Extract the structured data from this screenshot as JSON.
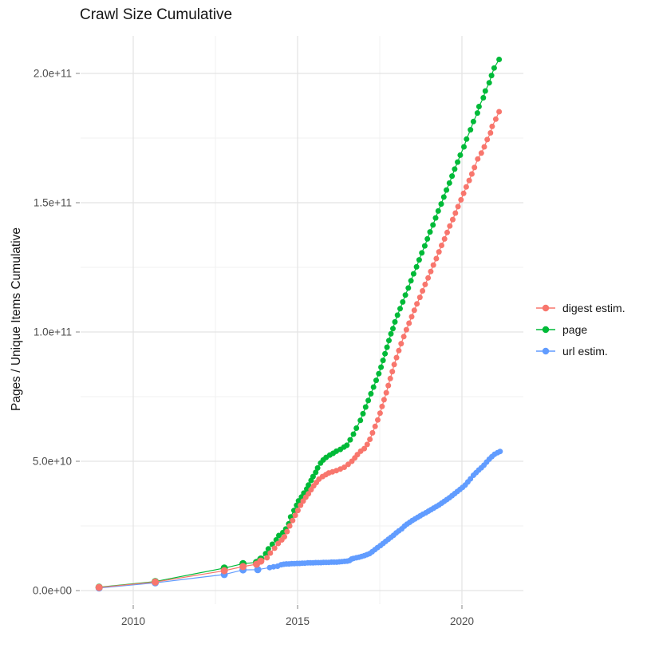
{
  "title": "Crawl Size Cumulative",
  "y_axis": {
    "label": "Pages / Unique Items Cumulative",
    "ticks": [
      {
        "label": "0.0e+00",
        "value_e9": 0
      },
      {
        "label": "5.0e+10",
        "value_e9": 50
      },
      {
        "label": "1.0e+11",
        "value_e9": 100
      },
      {
        "label": "1.5e+11",
        "value_e9": 150
      },
      {
        "label": "2.0e+11",
        "value_e9": 200
      }
    ],
    "minor_e9": [
      25,
      75,
      125,
      175
    ]
  },
  "x_axis": {
    "ticks": [
      {
        "label": "2010",
        "value": 2010
      },
      {
        "label": "2015",
        "value": 2015
      },
      {
        "label": "2020",
        "value": 2020
      }
    ],
    "minor": [
      2012.5,
      2017.5
    ]
  },
  "legend": {
    "items": [
      {
        "name": "digest estim.",
        "color": "#F8766D"
      },
      {
        "name": "page",
        "color": "#00BA38"
      },
      {
        "name": "url estim.",
        "color": "#619CFF"
      }
    ]
  },
  "colors": {
    "background": "#FFFFFF",
    "grid_major": "#E4E4E4",
    "grid_minor": "#F0F0F0",
    "tick": "#999999",
    "tick_label": "#4D4D4D",
    "text": "#151515",
    "digest": "#F8766D",
    "page": "#00BA38",
    "url": "#619CFF"
  },
  "chart_data": {
    "type": "scatter",
    "title": "Crawl Size Cumulative",
    "xlabel": "",
    "ylabel": "Pages / Unique Items Cumulative",
    "x_unit": "year (decimal)",
    "value_unit": "pages, value x 1e9",
    "xlim": [
      2008.4,
      2021.9
    ],
    "ylim_e9": [
      -5,
      215
    ],
    "grid": true,
    "legend_position": "right",
    "series": [
      {
        "name": "digest estim.",
        "color": "#F8766D",
        "points": [
          [
            2008.96,
            1.2
          ],
          [
            2010.67,
            3.3
          ],
          [
            2012.77,
            7.7
          ],
          [
            2013.34,
            9.3
          ],
          [
            2013.75,
            10.2
          ],
          [
            2013.88,
            11.4
          ],
          [
            2014.07,
            12.7
          ],
          [
            2014.17,
            14.5
          ],
          [
            2014.3,
            16.4
          ],
          [
            2014.41,
            18.2
          ],
          [
            2014.52,
            19.6
          ],
          [
            2014.6,
            20.8
          ],
          [
            2014.68,
            22.8
          ],
          [
            2014.76,
            25.0
          ],
          [
            2014.85,
            27.1
          ],
          [
            2014.93,
            29.1
          ],
          [
            2015.01,
            31.0
          ],
          [
            2015.09,
            33.0
          ],
          [
            2015.17,
            34.6
          ],
          [
            2015.25,
            36.1
          ],
          [
            2015.33,
            37.4
          ],
          [
            2015.41,
            39.0
          ],
          [
            2015.49,
            40.5
          ],
          [
            2015.57,
            41.8
          ],
          [
            2015.65,
            43.1
          ],
          [
            2015.76,
            44.1
          ],
          [
            2015.86,
            44.8
          ],
          [
            2015.95,
            45.5
          ],
          [
            2016.06,
            45.9
          ],
          [
            2016.18,
            46.4
          ],
          [
            2016.3,
            47.0
          ],
          [
            2016.42,
            47.7
          ],
          [
            2016.54,
            48.8
          ],
          [
            2016.65,
            50.0
          ],
          [
            2016.74,
            51.3
          ],
          [
            2016.82,
            52.6
          ],
          [
            2016.92,
            53.9
          ],
          [
            2017.03,
            54.9
          ],
          [
            2017.12,
            56.5
          ],
          [
            2017.2,
            58.5
          ],
          [
            2017.28,
            61.0
          ],
          [
            2017.36,
            63.5
          ],
          [
            2017.44,
            66.0
          ],
          [
            2017.51,
            68.6
          ],
          [
            2017.57,
            71.2
          ],
          [
            2017.63,
            73.8
          ],
          [
            2017.7,
            76.5
          ],
          [
            2017.76,
            79.3
          ],
          [
            2017.82,
            82.0
          ],
          [
            2017.88,
            84.7
          ],
          [
            2017.94,
            87.4
          ],
          [
            2018.01,
            90.1
          ],
          [
            2018.08,
            92.8
          ],
          [
            2018.15,
            95.5
          ],
          [
            2018.23,
            98.2
          ],
          [
            2018.31,
            100.9
          ],
          [
            2018.39,
            103.4
          ],
          [
            2018.47,
            105.9
          ],
          [
            2018.55,
            108.4
          ],
          [
            2018.63,
            110.9
          ],
          [
            2018.72,
            113.4
          ],
          [
            2018.8,
            115.9
          ],
          [
            2018.88,
            118.4
          ],
          [
            2018.97,
            120.9
          ],
          [
            2019.05,
            123.4
          ],
          [
            2019.13,
            125.9
          ],
          [
            2019.22,
            128.4
          ],
          [
            2019.3,
            131.0
          ],
          [
            2019.38,
            133.5
          ],
          [
            2019.47,
            136.0
          ],
          [
            2019.55,
            138.5
          ],
          [
            2019.63,
            141.0
          ],
          [
            2019.72,
            143.5
          ],
          [
            2019.8,
            146.0
          ],
          [
            2019.88,
            148.5
          ],
          [
            2019.97,
            151.1
          ],
          [
            2020.05,
            153.6
          ],
          [
            2020.13,
            156.1
          ],
          [
            2020.22,
            158.6
          ],
          [
            2020.3,
            161.1
          ],
          [
            2020.38,
            163.6
          ],
          [
            2020.48,
            166.9
          ],
          [
            2020.59,
            169.2
          ],
          [
            2020.68,
            171.6
          ],
          [
            2020.77,
            174.4
          ],
          [
            2020.87,
            177.0
          ],
          [
            2020.92,
            179.5
          ],
          [
            2021.03,
            182.3
          ],
          [
            2021.13,
            185.2
          ]
        ]
      },
      {
        "name": "page",
        "color": "#00BA38",
        "points": [
          [
            2008.96,
            1.3
          ],
          [
            2010.67,
            3.5
          ],
          [
            2012.77,
            8.7
          ],
          [
            2013.34,
            10.4
          ],
          [
            2013.75,
            10.9
          ],
          [
            2013.88,
            12.2
          ],
          [
            2014.03,
            14.3
          ],
          [
            2014.11,
            16.1
          ],
          [
            2014.23,
            17.9
          ],
          [
            2014.35,
            19.6
          ],
          [
            2014.43,
            21.3
          ],
          [
            2014.55,
            22.4
          ],
          [
            2014.64,
            23.8
          ],
          [
            2014.73,
            25.8
          ],
          [
            2014.79,
            28.5
          ],
          [
            2014.89,
            31.0
          ],
          [
            2014.97,
            33.0
          ],
          [
            2015.03,
            34.7
          ],
          [
            2015.12,
            36.2
          ],
          [
            2015.19,
            37.7
          ],
          [
            2015.28,
            39.3
          ],
          [
            2015.33,
            40.8
          ],
          [
            2015.41,
            42.6
          ],
          [
            2015.47,
            44.1
          ],
          [
            2015.55,
            45.7
          ],
          [
            2015.61,
            47.4
          ],
          [
            2015.7,
            49.3
          ],
          [
            2015.78,
            50.5
          ],
          [
            2015.87,
            51.5
          ],
          [
            2015.98,
            52.4
          ],
          [
            2016.08,
            53.1
          ],
          [
            2016.18,
            53.9
          ],
          [
            2016.3,
            54.6
          ],
          [
            2016.41,
            55.5
          ],
          [
            2016.5,
            56.2
          ],
          [
            2016.6,
            58.3
          ],
          [
            2016.7,
            60.5
          ],
          [
            2016.79,
            62.8
          ],
          [
            2016.91,
            65.8
          ],
          [
            2016.99,
            68.4
          ],
          [
            2017.07,
            71.0
          ],
          [
            2017.15,
            73.5
          ],
          [
            2017.23,
            76.1
          ],
          [
            2017.31,
            78.7
          ],
          [
            2017.39,
            81.3
          ],
          [
            2017.47,
            83.9
          ],
          [
            2017.54,
            86.4
          ],
          [
            2017.6,
            89.0
          ],
          [
            2017.66,
            91.6
          ],
          [
            2017.72,
            94.1
          ],
          [
            2017.78,
            96.7
          ],
          [
            2017.84,
            99.3
          ],
          [
            2017.9,
            101.3
          ],
          [
            2017.96,
            103.9
          ],
          [
            2018.04,
            106.5
          ],
          [
            2018.12,
            109.0
          ],
          [
            2018.2,
            111.6
          ],
          [
            2018.28,
            114.3
          ],
          [
            2018.37,
            117.0
          ],
          [
            2018.45,
            119.8
          ],
          [
            2018.53,
            122.5
          ],
          [
            2018.62,
            125.2
          ],
          [
            2018.7,
            127.9
          ],
          [
            2018.78,
            130.6
          ],
          [
            2018.87,
            133.3
          ],
          [
            2018.95,
            136.0
          ],
          [
            2019.03,
            138.7
          ],
          [
            2019.12,
            141.4
          ],
          [
            2019.2,
            144.1
          ],
          [
            2019.28,
            146.8
          ],
          [
            2019.37,
            149.5
          ],
          [
            2019.45,
            152.2
          ],
          [
            2019.53,
            154.9
          ],
          [
            2019.62,
            157.6
          ],
          [
            2019.7,
            160.3
          ],
          [
            2019.78,
            163.0
          ],
          [
            2019.87,
            165.7
          ],
          [
            2019.95,
            168.4
          ],
          [
            2020.06,
            171.6
          ],
          [
            2020.14,
            174.6
          ],
          [
            2020.26,
            178.2
          ],
          [
            2020.35,
            181.4
          ],
          [
            2020.47,
            184.7
          ],
          [
            2020.52,
            187.2
          ],
          [
            2020.65,
            190.6
          ],
          [
            2020.71,
            193.2
          ],
          [
            2020.83,
            196.4
          ],
          [
            2020.9,
            199.2
          ],
          [
            2020.98,
            202.1
          ],
          [
            2021.13,
            205.4
          ]
        ]
      },
      {
        "name": "url estim.",
        "color": "#619CFF",
        "points": [
          [
            2008.96,
            1.0
          ],
          [
            2010.67,
            3.0
          ],
          [
            2012.77,
            6.2
          ],
          [
            2013.34,
            8.0
          ],
          [
            2013.79,
            8.1
          ],
          [
            2014.15,
            8.9
          ],
          [
            2014.27,
            9.2
          ],
          [
            2014.39,
            9.4
          ],
          [
            2014.5,
            10.0
          ],
          [
            2014.58,
            10.2
          ],
          [
            2014.66,
            10.3
          ],
          [
            2014.74,
            10.3
          ],
          [
            2014.82,
            10.4
          ],
          [
            2014.9,
            10.4
          ],
          [
            2014.98,
            10.5
          ],
          [
            2015.06,
            10.5
          ],
          [
            2015.14,
            10.6
          ],
          [
            2015.22,
            10.6
          ],
          [
            2015.31,
            10.7
          ],
          [
            2015.39,
            10.7
          ],
          [
            2015.47,
            10.7
          ],
          [
            2015.55,
            10.8
          ],
          [
            2015.63,
            10.8
          ],
          [
            2015.71,
            10.8
          ],
          [
            2015.79,
            10.9
          ],
          [
            2015.87,
            10.9
          ],
          [
            2015.95,
            10.9
          ],
          [
            2016.03,
            11.0
          ],
          [
            2016.11,
            11.0
          ],
          [
            2016.19,
            11.0
          ],
          [
            2016.27,
            11.1
          ],
          [
            2016.35,
            11.2
          ],
          [
            2016.43,
            11.3
          ],
          [
            2016.51,
            11.4
          ],
          [
            2016.58,
            11.6
          ],
          [
            2016.64,
            12.2
          ],
          [
            2016.7,
            12.4
          ],
          [
            2016.79,
            12.7
          ],
          [
            2016.87,
            12.9
          ],
          [
            2016.95,
            13.2
          ],
          [
            2017.03,
            13.5
          ],
          [
            2017.11,
            13.9
          ],
          [
            2017.19,
            14.3
          ],
          [
            2017.27,
            15.0
          ],
          [
            2017.35,
            15.8
          ],
          [
            2017.43,
            16.6
          ],
          [
            2017.52,
            17.4
          ],
          [
            2017.6,
            18.2
          ],
          [
            2017.68,
            19.0
          ],
          [
            2017.76,
            19.8
          ],
          [
            2017.84,
            20.6
          ],
          [
            2017.92,
            21.4
          ],
          [
            2018.0,
            22.3
          ],
          [
            2018.08,
            23.1
          ],
          [
            2018.17,
            23.9
          ],
          [
            2018.25,
            24.9
          ],
          [
            2018.33,
            25.7
          ],
          [
            2018.41,
            26.4
          ],
          [
            2018.49,
            27.1
          ],
          [
            2018.57,
            27.7
          ],
          [
            2018.65,
            28.3
          ],
          [
            2018.73,
            28.9
          ],
          [
            2018.81,
            29.5
          ],
          [
            2018.9,
            30.1
          ],
          [
            2018.98,
            30.7
          ],
          [
            2019.06,
            31.3
          ],
          [
            2019.14,
            31.9
          ],
          [
            2019.22,
            32.5
          ],
          [
            2019.3,
            33.1
          ],
          [
            2019.38,
            33.8
          ],
          [
            2019.46,
            34.5
          ],
          [
            2019.54,
            35.2
          ],
          [
            2019.62,
            35.9
          ],
          [
            2019.7,
            36.7
          ],
          [
            2019.78,
            37.5
          ],
          [
            2019.86,
            38.3
          ],
          [
            2019.94,
            39.1
          ],
          [
            2020.02,
            39.9
          ],
          [
            2020.1,
            40.8
          ],
          [
            2020.18,
            42.0
          ],
          [
            2020.26,
            43.2
          ],
          [
            2020.35,
            44.6
          ],
          [
            2020.43,
            45.6
          ],
          [
            2020.51,
            46.6
          ],
          [
            2020.59,
            47.5
          ],
          [
            2020.67,
            48.5
          ],
          [
            2020.75,
            49.7
          ],
          [
            2020.83,
            50.8
          ],
          [
            2020.91,
            51.8
          ],
          [
            2020.99,
            52.7
          ],
          [
            2021.08,
            53.3
          ],
          [
            2021.16,
            53.8
          ]
        ]
      }
    ]
  }
}
